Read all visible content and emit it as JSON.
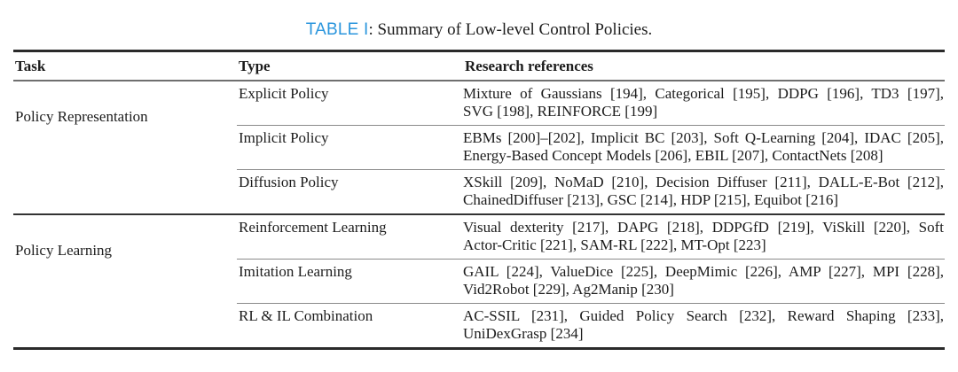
{
  "caption": {
    "label": "TABLE I",
    "text": ": Summary of Low-level Control Policies."
  },
  "colors": {
    "caption_label_blue": "#2b96dd",
    "text": "#1c1c1c",
    "rule_dark": "#2a2a2a",
    "rule_gray": "#8a8a8a"
  },
  "columns": {
    "task": "Task",
    "type": "Type",
    "refs": "Research references"
  },
  "groups": [
    {
      "task": "Policy Representation",
      "rows": [
        {
          "type": "Explicit Policy",
          "refs": {
            "line1": "Mixture of Gaussians [194], Categorical [195], DDPG [196], TD3 [197],",
            "line2": "SVG [198], REINFORCE [199]"
          }
        },
        {
          "type": "Implicit Policy",
          "refs": {
            "line1": "EBMs [200]–[202], Implicit BC [203], Soft Q-Learning [204], IDAC [205],",
            "line2": "Energy-Based Concept Models [206], EBIL [207], ContactNets [208]"
          }
        },
        {
          "type": "Diffusion Policy",
          "refs": {
            "line1": "XSkill [209], NoMaD [210], Decision Diffuser [211], DALL-E-Bot [212],",
            "line2": "ChainedDiffuser [213], GSC [214], HDP [215], Equibot [216]"
          }
        }
      ]
    },
    {
      "task": "Policy Learning",
      "rows": [
        {
          "type": "Reinforcement Learning",
          "refs": {
            "line1": "Visual dexterity [217], DAPG [218], DDPGfD [219], ViSkill [220], Soft",
            "line2": "Actor-Critic [221], SAM-RL [222], MT-Opt [223]"
          }
        },
        {
          "type": "Imitation Learning",
          "refs": {
            "line1": "GAIL [224], ValueDice [225], DeepMimic [226], AMP [227], MPI [228],",
            "line2": "Vid2Robot [229], Ag2Manip [230]"
          }
        },
        {
          "type": "RL & IL Combination",
          "refs": {
            "line1": "AC-SSIL [231], Guided Policy Search [232], Reward Shaping [233],",
            "line2": "UniDexGrasp [234]"
          }
        }
      ]
    }
  ]
}
